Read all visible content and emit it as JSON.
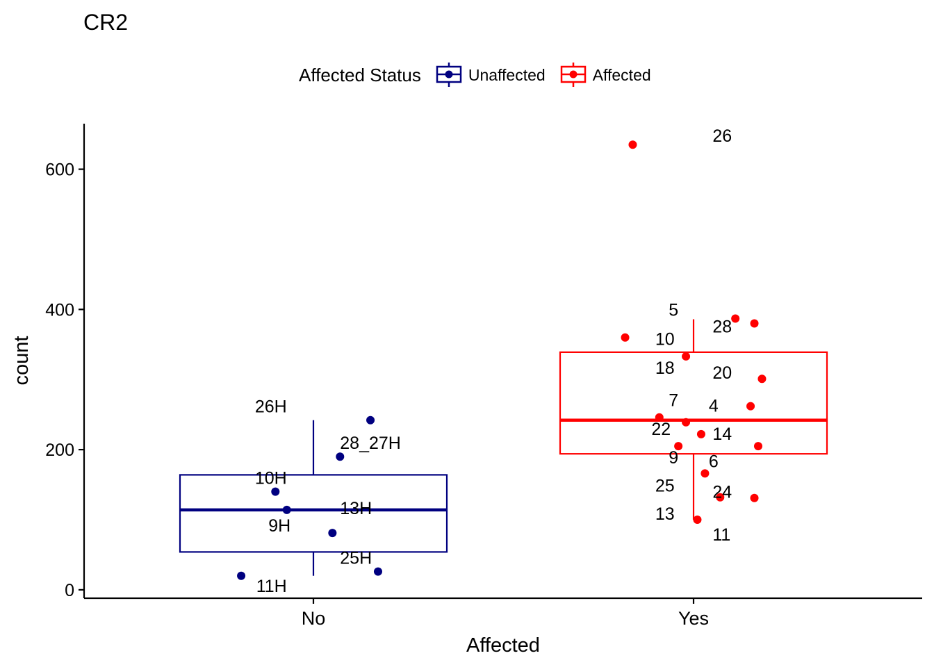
{
  "chart_data": {
    "type": "boxplot",
    "title": "CR2",
    "xlabel": "Affected",
    "ylabel": "count",
    "categories": [
      "No",
      "Yes"
    ],
    "ylim": [
      -12,
      665
    ],
    "yticks": [
      0,
      200,
      400,
      600
    ],
    "legend": {
      "title": "Affected Status",
      "placement": "top",
      "entries": [
        {
          "label": "Unaffected",
          "color": "#000080"
        },
        {
          "label": "Affected",
          "color": "#ff0000"
        }
      ]
    },
    "boxes": [
      {
        "category": "No",
        "group": "Unaffected",
        "color": "#000080",
        "whisker_low": 20,
        "q1": 54,
        "median": 114,
        "q3": 164,
        "whisker_high": 242
      },
      {
        "category": "Yes",
        "group": "Affected",
        "color": "#ff0000",
        "whisker_low": 100,
        "q1": 194,
        "median": 242,
        "q3": 339,
        "whisker_high": 386
      }
    ],
    "series": [
      {
        "name": "Unaffected",
        "category": "No",
        "color": "#000080",
        "points": [
          {
            "label": "26H",
            "jitter": 0.15,
            "y": 242,
            "lx": -0.07,
            "ly": 262
          },
          {
            "label": "28_27H",
            "jitter": 0.07,
            "y": 190,
            "lx": 0.07,
            "ly": 210
          },
          {
            "label": "10H",
            "jitter": -0.1,
            "y": 140,
            "lx": -0.07,
            "ly": 160
          },
          {
            "label": "13H",
            "jitter": -0.07,
            "y": 114,
            "lx": 0.07,
            "ly": 117
          },
          {
            "label": "9H",
            "jitter": 0.05,
            "y": 81,
            "lx": -0.06,
            "ly": 92
          },
          {
            "label": "25H",
            "jitter": 0.17,
            "y": 26,
            "lx": 0.07,
            "ly": 46
          },
          {
            "label": "11H",
            "jitter": -0.19,
            "y": 20,
            "lx": -0.07,
            "ly": 6
          }
        ]
      },
      {
        "name": "Affected",
        "category": "Yes",
        "color": "#ff0000",
        "points": [
          {
            "label": "26",
            "jitter": -0.16,
            "y": 635,
            "lx": 0.05,
            "ly": 648
          },
          {
            "label": "5",
            "jitter": 0.11,
            "y": 387,
            "lx": -0.04,
            "ly": 400
          },
          {
            "label": "28",
            "jitter": 0.16,
            "y": 380,
            "lx": 0.05,
            "ly": 376
          },
          {
            "label": "10",
            "jitter": -0.18,
            "y": 360,
            "lx": -0.05,
            "ly": 358
          },
          {
            "label": "18",
            "jitter": -0.02,
            "y": 333,
            "lx": -0.05,
            "ly": 317
          },
          {
            "label": "20",
            "jitter": 0.18,
            "y": 301,
            "lx": 0.05,
            "ly": 310
          },
          {
            "label": "7",
            "jitter": -0.09,
            "y": 246,
            "lx": -0.04,
            "ly": 271
          },
          {
            "label": "4",
            "jitter": 0.15,
            "y": 262,
            "lx": 0.04,
            "ly": 263
          },
          {
            "label": "22",
            "jitter": -0.02,
            "y": 239,
            "lx": -0.06,
            "ly": 230
          },
          {
            "label": "14",
            "jitter": 0.02,
            "y": 222,
            "lx": 0.05,
            "ly": 223
          },
          {
            "label": "9",
            "jitter": -0.04,
            "y": 205,
            "lx": -0.04,
            "ly": 189
          },
          {
            "label": "6",
            "jitter": 0.17,
            "y": 205,
            "lx": 0.04,
            "ly": 184
          },
          {
            "label": "25",
            "jitter": 0.03,
            "y": 166,
            "lx": -0.05,
            "ly": 149
          },
          {
            "label": "24",
            "jitter": 0.07,
            "y": 132,
            "lx": 0.05,
            "ly": 140
          },
          {
            "label": "13",
            "jitter": 0.16,
            "y": 131,
            "lx": -0.05,
            "ly": 109
          },
          {
            "label": "11",
            "jitter": 0.01,
            "y": 100,
            "lx": 0.05,
            "ly": 79
          }
        ]
      }
    ]
  }
}
